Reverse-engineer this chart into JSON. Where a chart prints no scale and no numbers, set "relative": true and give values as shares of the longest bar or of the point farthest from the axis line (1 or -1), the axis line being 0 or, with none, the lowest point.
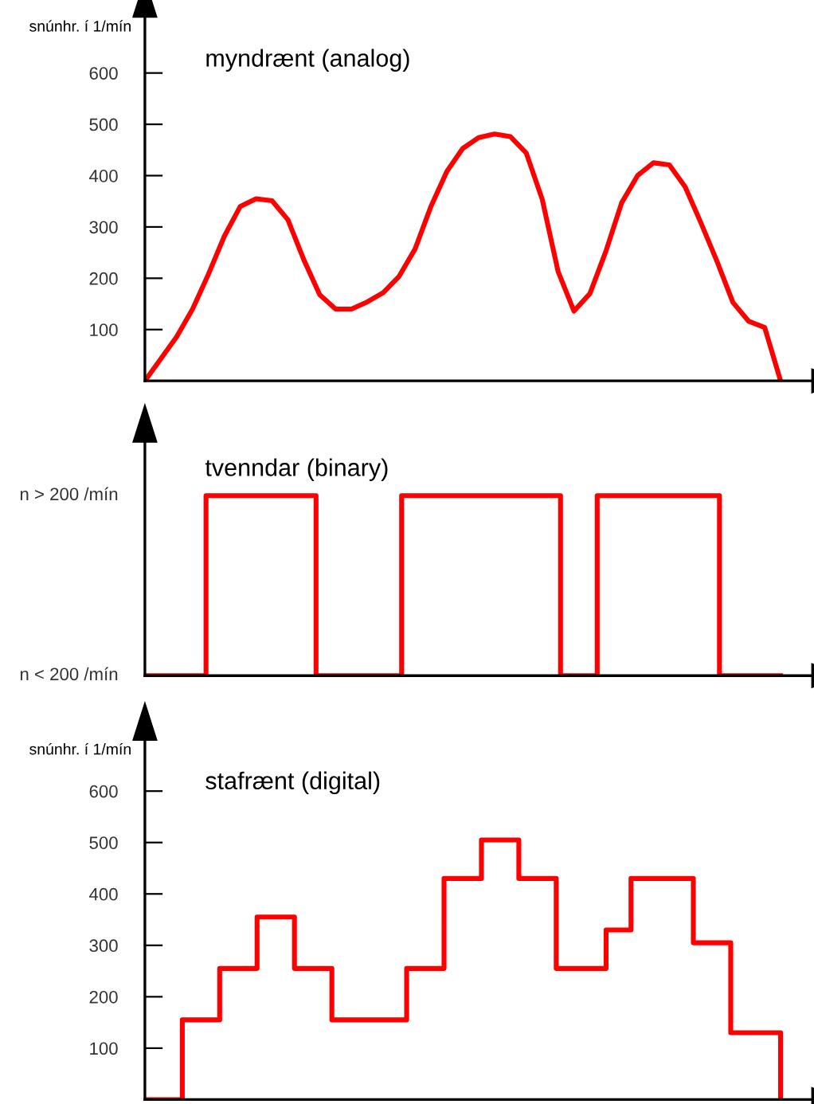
{
  "chart_data": [
    {
      "type": "line",
      "title": "myndrænt (analog)",
      "ylabel": "snúnhr. í 1/mín",
      "color": "#ff0000",
      "tick_labels": "y",
      "categories": [
        null,
        null,
        null,
        null,
        null,
        null,
        null,
        null,
        null,
        null,
        null,
        null,
        null,
        null,
        null,
        null,
        null,
        null,
        null,
        null,
        null,
        null,
        null,
        null,
        null,
        null,
        null,
        null,
        null,
        null,
        null,
        null,
        null,
        null,
        null,
        null,
        null,
        null,
        null,
        null,
        null
      ],
      "values": [
        0,
        43,
        86,
        140,
        208,
        282,
        340,
        355,
        351,
        314,
        236,
        168,
        140,
        140,
        154,
        172,
        204,
        257,
        340,
        408,
        453,
        474,
        481,
        476,
        444,
        354,
        213,
        136,
        170,
        252,
        347,
        400,
        425,
        421,
        378,
        307,
        233,
        153,
        116,
        104,
        0
      ],
      "ylim": [
        0,
        710
      ],
      "yticks": [
        100,
        200,
        300,
        400,
        500,
        600
      ]
    },
    {
      "type": "step",
      "title": "tvenndar (binary)",
      "color": "#ff0000",
      "tick_labels": "y",
      "categories": [
        null,
        null,
        null,
        null,
        null,
        null,
        null,
        null,
        null,
        null,
        null,
        null,
        null,
        null,
        null,
        null,
        null,
        null,
        null,
        null,
        null,
        null,
        null,
        null,
        null,
        null,
        null,
        null,
        null,
        null,
        null,
        null,
        null,
        null,
        null,
        null,
        null,
        null,
        null,
        null,
        null,
        null,
        null,
        null,
        null,
        null,
        null,
        null,
        null,
        null,
        null,
        null,
        null
      ],
      "values": [
        0,
        0,
        0,
        0,
        0,
        1,
        1,
        1,
        1,
        1,
        1,
        1,
        1,
        1,
        0,
        0,
        0,
        0,
        0,
        0,
        0,
        1,
        1,
        1,
        1,
        1,
        1,
        1,
        1,
        1,
        1,
        1,
        1,
        1,
        0,
        0,
        0,
        1,
        1,
        1,
        1,
        1,
        1,
        1,
        1,
        1,
        1,
        0,
        0,
        0,
        0,
        0,
        0
      ],
      "relative": true,
      "annotations": [
        "n < 200 /mín",
        "n > 200 /mín"
      ]
    },
    {
      "type": "step",
      "title": "stafrænt (digital)",
      "ylabel": "snúnhr. í 1/mín",
      "color": "#ff0000",
      "tick_labels": "y",
      "categories": [
        null,
        null,
        null,
        null,
        null,
        null,
        null,
        null,
        null,
        null,
        null,
        null,
        null,
        null,
        null,
        null,
        null,
        null,
        null,
        null,
        null,
        null,
        null,
        null,
        null,
        null,
        null,
        null,
        null,
        null,
        null,
        null,
        null,
        null,
        null,
        null,
        null,
        null,
        null,
        null,
        null,
        null,
        null,
        null,
        null,
        null,
        null,
        null,
        null,
        null,
        null,
        null
      ],
      "values": [
        0,
        0,
        0,
        155,
        155,
        155,
        255,
        255,
        255,
        355,
        355,
        355,
        255,
        255,
        255,
        155,
        155,
        155,
        155,
        155,
        155,
        255,
        255,
        255,
        430,
        430,
        430,
        505,
        505,
        505,
        430,
        430,
        430,
        255,
        255,
        255,
        255,
        330,
        330,
        430,
        430,
        430,
        430,
        430,
        305,
        305,
        305,
        130,
        130,
        130,
        130,
        0
      ],
      "ylim": [
        0,
        700
      ],
      "yticks": [
        100,
        200,
        300,
        400,
        500,
        600
      ]
    }
  ]
}
